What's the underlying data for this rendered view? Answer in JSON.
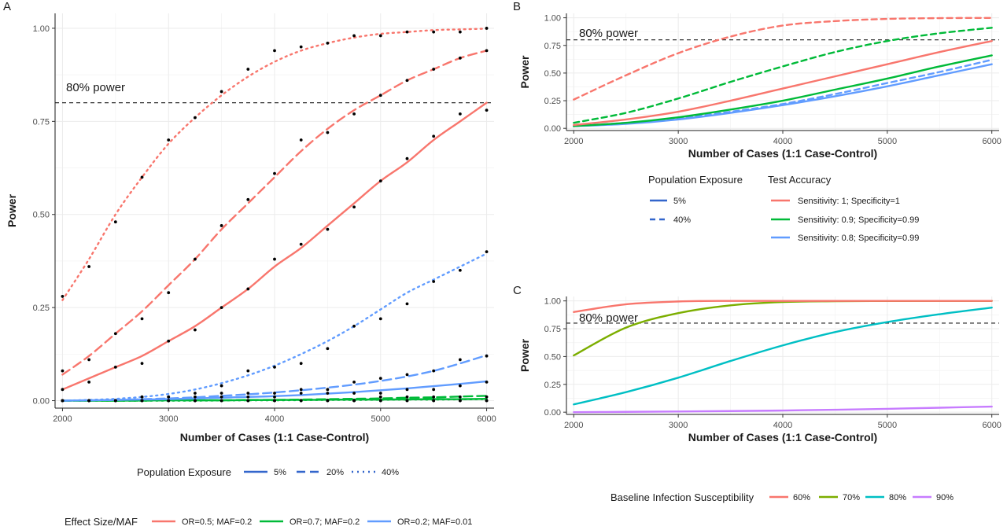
{
  "chart_data": [
    {
      "panel": "A",
      "type": "line",
      "xlabel": "Number of Cases (1:1 Case-Control)",
      "ylabel": "Power",
      "xlim": [
        1930,
        6070
      ],
      "ylim": [
        -0.02,
        1.04
      ],
      "xticks": [
        2000,
        3000,
        4000,
        5000,
        6000
      ],
      "yticks": [
        0.0,
        0.25,
        0.5,
        0.75,
        1.0
      ],
      "ytick_labels": [
        "0.00",
        "0.25",
        "0.50",
        "0.75",
        "1.00"
      ],
      "grid": true,
      "reference_line": {
        "y": 0.8,
        "style": "dashed",
        "label": "80% power"
      },
      "x": [
        2000,
        2250,
        2500,
        2750,
        3000,
        3250,
        3500,
        3750,
        4000,
        4250,
        4500,
        4750,
        5000,
        5250,
        5500,
        5750,
        6000
      ],
      "series": [
        {
          "effect": "OR=0.5; MAF=0.2",
          "exposure": "5%",
          "color": "#F8766D",
          "values": [
            0.03,
            0.06,
            0.09,
            0.12,
            0.16,
            0.2,
            0.25,
            0.3,
            0.36,
            0.41,
            0.47,
            0.53,
            0.59,
            0.64,
            0.7,
            0.75,
            0.8
          ],
          "points": [
            0.03,
            0.05,
            0.09,
            0.1,
            0.16,
            0.19,
            0.25,
            0.3,
            0.38,
            0.42,
            0.46,
            0.52,
            0.59,
            0.65,
            0.71,
            0.77,
            0.78
          ]
        },
        {
          "effect": "OR=0.5; MAF=0.2",
          "exposure": "20%",
          "color": "#F8766D",
          "values": [
            0.07,
            0.12,
            0.18,
            0.24,
            0.31,
            0.38,
            0.46,
            0.53,
            0.6,
            0.67,
            0.73,
            0.78,
            0.82,
            0.86,
            0.89,
            0.92,
            0.94
          ],
          "points": [
            0.08,
            0.11,
            0.18,
            0.22,
            0.29,
            0.38,
            0.47,
            0.54,
            0.61,
            0.7,
            0.72,
            0.77,
            0.82,
            0.86,
            0.89,
            0.92,
            0.94
          ]
        },
        {
          "effect": "OR=0.5; MAF=0.2",
          "exposure": "40%",
          "color": "#F8766D",
          "values": [
            0.27,
            0.38,
            0.5,
            0.6,
            0.69,
            0.76,
            0.82,
            0.87,
            0.91,
            0.94,
            0.96,
            0.975,
            0.985,
            0.99,
            0.995,
            0.997,
            0.999
          ],
          "points": [
            0.28,
            0.36,
            0.48,
            0.6,
            0.7,
            0.76,
            0.83,
            0.89,
            0.94,
            0.95,
            0.96,
            0.98,
            0.98,
            0.99,
            0.99,
            0.99,
            1.0
          ]
        },
        {
          "effect": "OR=0.7; MAF=0.2",
          "exposure": "5%",
          "color": "#00BA38",
          "values": [
            0.0,
            0.0,
            0.0,
            0.0005,
            0.001,
            0.001,
            0.001,
            0.0015,
            0.002,
            0.002,
            0.0025,
            0.003,
            0.003,
            0.0035,
            0.004,
            0.004,
            0.005
          ],
          "points": [
            0.0,
            0.0,
            0.0,
            0.0,
            0.0,
            0.0,
            0.0,
            0.0,
            0.0,
            0.0,
            0.0,
            0.0,
            0.0,
            0.0,
            0.0,
            0.0,
            0.0
          ]
        },
        {
          "effect": "OR=0.7; MAF=0.2",
          "exposure": "20%",
          "color": "#00BA38",
          "values": [
            0.0,
            0.0,
            0.0,
            0.0,
            0.001,
            0.001,
            0.001,
            0.002,
            0.002,
            0.003,
            0.004,
            0.005,
            0.006,
            0.008,
            0.009,
            0.011,
            0.013
          ],
          "points": [
            0.0,
            0.0,
            0.0,
            0.0,
            0.0,
            0.0,
            0.0,
            0.0,
            0.0,
            0.0,
            0.0,
            0.0,
            0.01,
            0.01,
            0.01,
            0.01,
            0.01
          ]
        },
        {
          "effect": "OR=0.7; MAF=0.2",
          "exposure": "40%",
          "color": "#00BA38",
          "values": [
            0.0,
            0.0,
            0.0,
            0.0,
            0.0,
            0.0,
            0.0005,
            0.001,
            0.001,
            0.0015,
            0.002,
            0.002,
            0.0025,
            0.003,
            0.003,
            0.0035,
            0.004
          ],
          "points": [
            0.0,
            0.0,
            0.0,
            0.0,
            0.0,
            0.0,
            0.0,
            0.0,
            0.0,
            0.0,
            0.0,
            0.0,
            0.0,
            0.0,
            0.0,
            0.0,
            0.0
          ]
        },
        {
          "effect": "OR=0.2; MAF=0.01",
          "exposure": "5%",
          "color": "#619CFF",
          "values": [
            0.0,
            0.001,
            0.002,
            0.003,
            0.004,
            0.006,
            0.008,
            0.01,
            0.012,
            0.015,
            0.019,
            0.023,
            0.028,
            0.033,
            0.039,
            0.045,
            0.052
          ],
          "points": [
            0.0,
            0.0,
            0.0,
            0.01,
            0.0,
            0.0,
            0.01,
            0.01,
            0.01,
            0.02,
            0.02,
            0.02,
            0.02,
            0.03,
            0.03,
            0.04,
            0.05
          ]
        },
        {
          "effect": "OR=0.2; MAF=0.01",
          "exposure": "20%",
          "color": "#619CFF",
          "values": [
            0.0,
            0.001,
            0.002,
            0.004,
            0.006,
            0.009,
            0.013,
            0.017,
            0.022,
            0.028,
            0.035,
            0.043,
            0.053,
            0.065,
            0.08,
            0.1,
            0.122
          ],
          "points": [
            0.0,
            0.0,
            0.0,
            0.0,
            0.01,
            0.01,
            0.02,
            0.02,
            0.02,
            0.03,
            0.03,
            0.05,
            0.06,
            0.07,
            0.08,
            0.11,
            0.12
          ]
        },
        {
          "effect": "OR=0.2; MAF=0.01",
          "exposure": "40%",
          "color": "#619CFF",
          "values": [
            0.0,
            0.002,
            0.005,
            0.01,
            0.018,
            0.03,
            0.047,
            0.068,
            0.094,
            0.125,
            0.16,
            0.2,
            0.245,
            0.29,
            0.325,
            0.36,
            0.395
          ],
          "points": [
            0.0,
            0.0,
            0.0,
            0.01,
            0.01,
            0.02,
            0.04,
            0.08,
            0.09,
            0.1,
            0.14,
            0.2,
            0.22,
            0.26,
            0.32,
            0.35,
            0.4
          ]
        }
      ],
      "legends": [
        {
          "title": "Population Exposure",
          "items": [
            {
              "label": "5%",
              "linetype": "solid"
            },
            {
              "label": "20%",
              "linetype": "dashed"
            },
            {
              "label": "40%",
              "linetype": "dotted"
            }
          ]
        },
        {
          "title": "Effect Size/MAF",
          "items": [
            {
              "label": "OR=0.5; MAF=0.2",
              "color": "#F8766D"
            },
            {
              "label": "OR=0.7; MAF=0.2",
              "color": "#00BA38"
            },
            {
              "label": "OR=0.2; MAF=0.01",
              "color": "#619CFF"
            }
          ]
        }
      ]
    },
    {
      "panel": "B",
      "type": "line",
      "xlabel": "Number of Cases (1:1 Case-Control)",
      "ylabel": "Power",
      "xlim": [
        1930,
        6070
      ],
      "ylim": [
        -0.02,
        1.04
      ],
      "xticks": [
        2000,
        3000,
        4000,
        5000,
        6000
      ],
      "yticks": [
        0.0,
        0.25,
        0.5,
        0.75,
        1.0
      ],
      "ytick_labels": [
        "0.00",
        "0.25",
        "0.50",
        "0.75",
        "1.00"
      ],
      "grid": true,
      "reference_line": {
        "y": 0.8,
        "style": "dashed",
        "label": "80% power"
      },
      "x": [
        2000,
        2500,
        3000,
        3500,
        4000,
        4500,
        5000,
        5500,
        6000
      ],
      "series": [
        {
          "accuracy": "Sensitivity: 1; Specificity=1",
          "exposure": "5%",
          "color": "#F8766D",
          "values": [
            0.03,
            0.08,
            0.15,
            0.25,
            0.36,
            0.47,
            0.58,
            0.69,
            0.79
          ]
        },
        {
          "accuracy": "Sensitivity: 1; Specificity=1",
          "exposure": "40%",
          "color": "#F8766D",
          "values": [
            0.26,
            0.48,
            0.68,
            0.83,
            0.93,
            0.97,
            0.99,
            0.997,
            0.999
          ]
        },
        {
          "accuracy": "Sensitivity: 0.9; Specificity=0.99",
          "exposure": "5%",
          "color": "#00BA38",
          "values": [
            0.02,
            0.05,
            0.1,
            0.17,
            0.25,
            0.35,
            0.45,
            0.56,
            0.66
          ]
        },
        {
          "accuracy": "Sensitivity: 0.9; Specificity=0.99",
          "exposure": "40%",
          "color": "#00BA38",
          "values": [
            0.05,
            0.14,
            0.27,
            0.42,
            0.56,
            0.69,
            0.79,
            0.86,
            0.91
          ]
        },
        {
          "accuracy": "Sensitivity: 0.8; Specificity=0.99",
          "exposure": "5%",
          "color": "#619CFF",
          "values": [
            0.02,
            0.04,
            0.08,
            0.14,
            0.21,
            0.29,
            0.38,
            0.48,
            0.58
          ]
        },
        {
          "accuracy": "Sensitivity: 0.8; Specificity=0.99",
          "exposure": "40%",
          "color": "#619CFF",
          "values": [
            0.02,
            0.05,
            0.09,
            0.15,
            0.22,
            0.31,
            0.41,
            0.51,
            0.62
          ]
        }
      ],
      "legends": [
        {
          "title": "Population Exposure",
          "items": [
            {
              "label": "5%",
              "linetype": "solid"
            },
            {
              "label": "40%",
              "linetype": "dashed"
            }
          ]
        },
        {
          "title": "Test Accuracy",
          "items": [
            {
              "label": "Sensitivity: 1; Specificity=1",
              "color": "#F8766D"
            },
            {
              "label": "Sensitivity: 0.9; Specificity=0.99",
              "color": "#00BA38"
            },
            {
              "label": "Sensitivity: 0.8; Specificity=0.99",
              "color": "#619CFF"
            }
          ]
        }
      ]
    },
    {
      "panel": "C",
      "type": "line",
      "xlabel": "Number of Cases (1:1 Case-Control)",
      "ylabel": "Power",
      "xlim": [
        1930,
        6070
      ],
      "ylim": [
        -0.02,
        1.04
      ],
      "xticks": [
        2000,
        3000,
        4000,
        5000,
        6000
      ],
      "yticks": [
        0.0,
        0.25,
        0.5,
        0.75,
        1.0
      ],
      "ytick_labels": [
        "0.00",
        "0.25",
        "0.50",
        "0.75",
        "1.00"
      ],
      "grid": true,
      "reference_line": {
        "y": 0.8,
        "style": "dashed",
        "label": "80% power"
      },
      "x": [
        2000,
        2500,
        3000,
        3500,
        4000,
        4500,
        5000,
        5500,
        6000
      ],
      "series": [
        {
          "susceptibility": "60%",
          "color": "#F8766D",
          "values": [
            0.9,
            0.97,
            0.995,
            1.0,
            1.0,
            1.0,
            1.0,
            1.0,
            1.0
          ]
        },
        {
          "susceptibility": "70%",
          "color": "#7CAE00",
          "values": [
            0.51,
            0.76,
            0.89,
            0.96,
            0.99,
            0.997,
            0.999,
            1.0,
            1.0
          ]
        },
        {
          "susceptibility": "80%",
          "color": "#00BFC4",
          "values": [
            0.07,
            0.18,
            0.31,
            0.46,
            0.6,
            0.72,
            0.81,
            0.88,
            0.94
          ]
        },
        {
          "susceptibility": "90%",
          "color": "#C77CFF",
          "values": [
            0.0,
            0.003,
            0.006,
            0.01,
            0.015,
            0.022,
            0.03,
            0.04,
            0.05
          ]
        }
      ],
      "legends": [
        {
          "title": "Baseline Infection Susceptibility",
          "items": [
            {
              "label": "60%",
              "color": "#F8766D"
            },
            {
              "label": "70%",
              "color": "#7CAE00"
            },
            {
              "label": "80%",
              "color": "#00BFC4"
            },
            {
              "label": "90%",
              "color": "#C77CFF"
            }
          ]
        }
      ]
    }
  ]
}
